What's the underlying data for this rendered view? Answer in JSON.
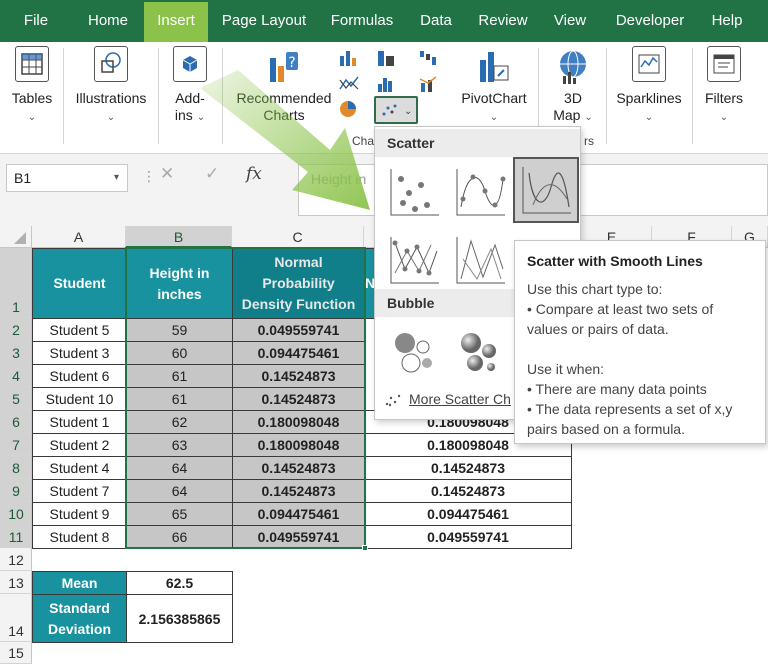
{
  "menu": {
    "tabs": [
      "File",
      "Home",
      "Insert",
      "Page Layout",
      "Formulas",
      "Data",
      "Review",
      "View",
      "Developer",
      "Help"
    ],
    "active": "Insert"
  },
  "ribbon": {
    "tables": "Tables",
    "illustrations": "Illustrations",
    "addins_1": "Add-",
    "addins_2": "ins",
    "recommended_1": "Recommended",
    "recommended_2": "Charts",
    "pivotchart": "PivotChart",
    "map3d_1": "3D",
    "map3d_2": "Map",
    "sparklines": "Sparklines",
    "filters": "Filters",
    "charts_group": "Cha",
    "map_group_tail": "rs"
  },
  "formula_bar": {
    "name_box": "B1",
    "fx": "fx",
    "content": "Height in"
  },
  "columns": [
    "A",
    "B",
    "C",
    "D",
    "E",
    "F",
    "G"
  ],
  "rows": [
    "1",
    "2",
    "3",
    "4",
    "5",
    "6",
    "7",
    "8",
    "9",
    "10",
    "11",
    "12",
    "13",
    "14",
    "15"
  ],
  "table": {
    "headers": {
      "student": "Student",
      "height": "Height in inches",
      "npdf": "Normal Probability Density Function",
      "d_header": "N"
    },
    "data": [
      {
        "student": "Student 5",
        "height": "59",
        "npdf": "0.049559741",
        "d": ""
      },
      {
        "student": "Student 3",
        "height": "60",
        "npdf": "0.094475461",
        "d": ""
      },
      {
        "student": "Student 6",
        "height": "61",
        "npdf": "0.14524873",
        "d": ""
      },
      {
        "student": "Student 10",
        "height": "61",
        "npdf": "0.14524873",
        "d": ""
      },
      {
        "student": "Student 1",
        "height": "62",
        "npdf": "0.180098048",
        "d": "0.180098048"
      },
      {
        "student": "Student 2",
        "height": "63",
        "npdf": "0.180098048",
        "d": "0.180098048"
      },
      {
        "student": "Student 4",
        "height": "64",
        "npdf": "0.14524873",
        "d": "0.14524873"
      },
      {
        "student": "Student 7",
        "height": "64",
        "npdf": "0.14524873",
        "d": "0.14524873"
      },
      {
        "student": "Student 9",
        "height": "65",
        "npdf": "0.094475461",
        "d": "0.094475461"
      },
      {
        "student": "Student 8",
        "height": "66",
        "npdf": "0.049559741",
        "d": "0.049559741"
      }
    ],
    "mean_label": "Mean",
    "mean_value": "62.5",
    "sd_label": "Standard Deviation",
    "sd_value": "2.156385865"
  },
  "dropdown": {
    "scatter_title": "Scatter",
    "bubble_title": "Bubble",
    "more": "More Scatter Ch"
  },
  "tooltip": {
    "title": "Scatter with Smooth Lines",
    "line1": "Use this chart type to:",
    "line2": "• Compare at least two sets of",
    "line3": "values or pairs of data.",
    "line4": "Use it when:",
    "line5": "• There are many data points",
    "line6": "• The data represents a set of x,y",
    "line7": "pairs based on a formula."
  },
  "colors": {
    "excel_green": "#217346",
    "active_tab": "#8bc34a",
    "header_teal": "#17929e",
    "selection_grey": "#c6c6c6"
  }
}
